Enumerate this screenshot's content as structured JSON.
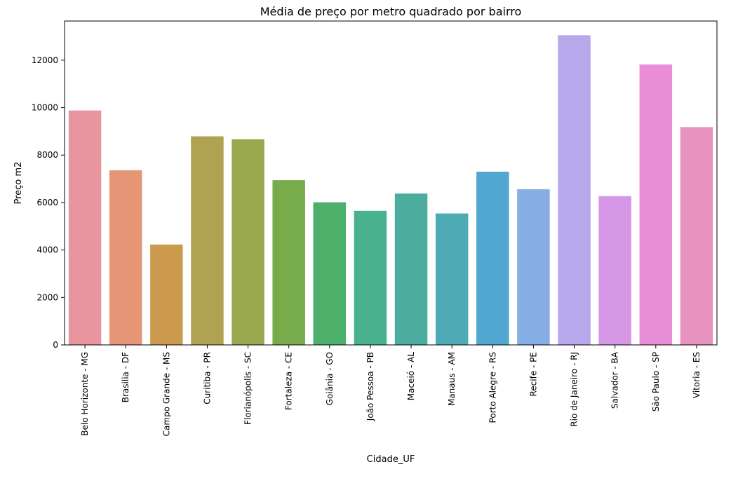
{
  "chart_data": {
    "type": "bar",
    "title": "Média de preço por metro quadrado por bairro",
    "xlabel": "Cidade_UF",
    "ylabel": "Preço m2",
    "ylim": [
      0,
      13650
    ],
    "yticks": [
      0,
      2000,
      4000,
      6000,
      8000,
      10000,
      12000
    ],
    "grid": false,
    "categories": [
      "Belo Horizonte - MG",
      "Brasilia - DF",
      "Campo Grande - MS",
      "Curitiba - PR",
      "Florianópolis - SC",
      "Fortaleza - CE",
      "Goiânia - GO",
      "João Pessoa - PB",
      "Maceió - AL",
      "Manaus - AM",
      "Porto Alegre - RS",
      "Recife - PE",
      "Rio de Janeiro - RJ",
      "Salvador - BA",
      "São Paulo - SP",
      "Vitoria - ES"
    ],
    "values": [
      9880,
      7360,
      4230,
      8790,
      8670,
      6940,
      6010,
      5650,
      6380,
      5540,
      7300,
      6560,
      13050,
      6270,
      11820,
      9180
    ],
    "colors": [
      "#e8959f",
      "#e69577",
      "#cc9a4e",
      "#b0a250",
      "#9aa84e",
      "#78ac4b",
      "#4cb06b",
      "#4ab18f",
      "#4cad9f",
      "#4eabb5",
      "#51a7cf",
      "#86aee4",
      "#b6a8ea",
      "#d596e6",
      "#e98ed6",
      "#e992c0"
    ]
  }
}
